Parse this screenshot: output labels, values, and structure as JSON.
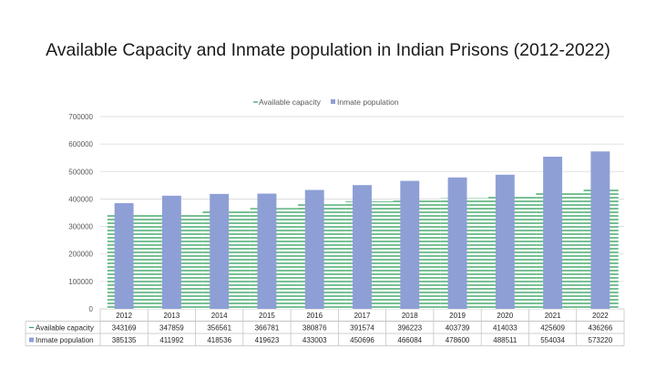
{
  "chart_data": {
    "type": "bar",
    "title": "Available Capacity and Inmate population in Indian Prisons (2012-2022)",
    "categories": [
      "2012",
      "2013",
      "2014",
      "2015",
      "2016",
      "2017",
      "2018",
      "2019",
      "2020",
      "2021",
      "2022"
    ],
    "series": [
      {
        "name": "Available capacity",
        "values": [
          343169,
          347859,
          356561,
          366781,
          380876,
          391574,
          396223,
          403739,
          414033,
          425609,
          436266
        ],
        "color": "#2e9e5b",
        "style": "area-hatched"
      },
      {
        "name": "Inmate population",
        "values": [
          385135,
          411992,
          418536,
          419623,
          433003,
          450696,
          466084,
          478600,
          488511,
          554034,
          573220
        ],
        "color": "#8e9fd6",
        "style": "bar"
      }
    ],
    "ylim": [
      0,
      700000
    ],
    "yticks": [
      0,
      100000,
      200000,
      300000,
      400000,
      500000,
      600000,
      700000
    ],
    "grid": true,
    "legend": "top-center",
    "data_table": true
  }
}
